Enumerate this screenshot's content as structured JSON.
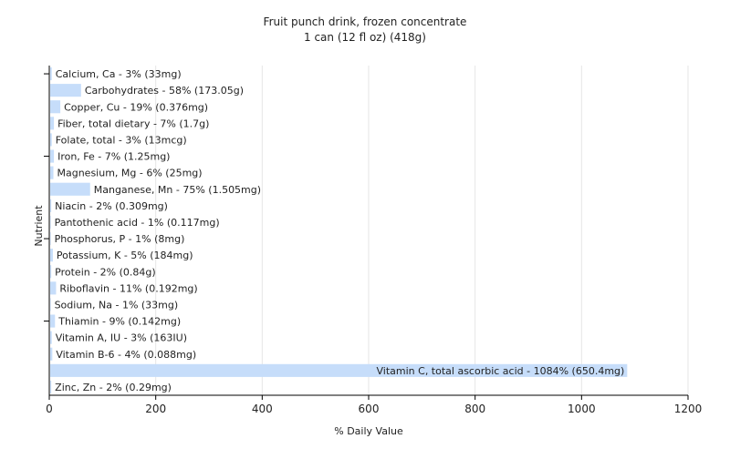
{
  "chart_data": {
    "type": "bar",
    "orientation": "horizontal",
    "title": "Fruit punch drink, frozen concentrate",
    "subtitle": "1 can (12 fl oz) (418g)",
    "xlabel": "% Daily Value",
    "ylabel": "Nutrient",
    "xlim": [
      0,
      1200
    ],
    "xticks": [
      0,
      200,
      400,
      600,
      800,
      1000,
      1200
    ],
    "grid": "vertical",
    "bar_color": "#c6ddfa",
    "categories": [
      "Calcium, Ca - 3% (33mg)",
      "Carbohydrates - 58% (173.05g)",
      "Copper, Cu - 19% (0.376mg)",
      "Fiber, total dietary - 7% (1.7g)",
      "Folate, total - 3% (13mcg)",
      "Iron, Fe - 7% (1.25mg)",
      "Magnesium, Mg - 6% (25mg)",
      "Manganese, Mn - 75% (1.505mg)",
      "Niacin - 2% (0.309mg)",
      "Pantothenic acid - 1% (0.117mg)",
      "Phosphorus, P - 1% (8mg)",
      "Potassium, K - 5% (184mg)",
      "Protein - 2% (0.84g)",
      "Riboflavin - 11% (0.192mg)",
      "Sodium, Na - 1% (33mg)",
      "Thiamin - 9% (0.142mg)",
      "Vitamin A, IU - 3% (163IU)",
      "Vitamin B-6 - 4% (0.088mg)",
      "Vitamin C, total ascorbic acid - 1084% (650.4mg)",
      "Zinc, Zn - 2% (0.29mg)"
    ],
    "values": [
      3,
      58,
      19,
      7,
      3,
      7,
      6,
      75,
      2,
      1,
      1,
      5,
      2,
      11,
      1,
      9,
      3,
      4,
      1084,
      2
    ]
  }
}
